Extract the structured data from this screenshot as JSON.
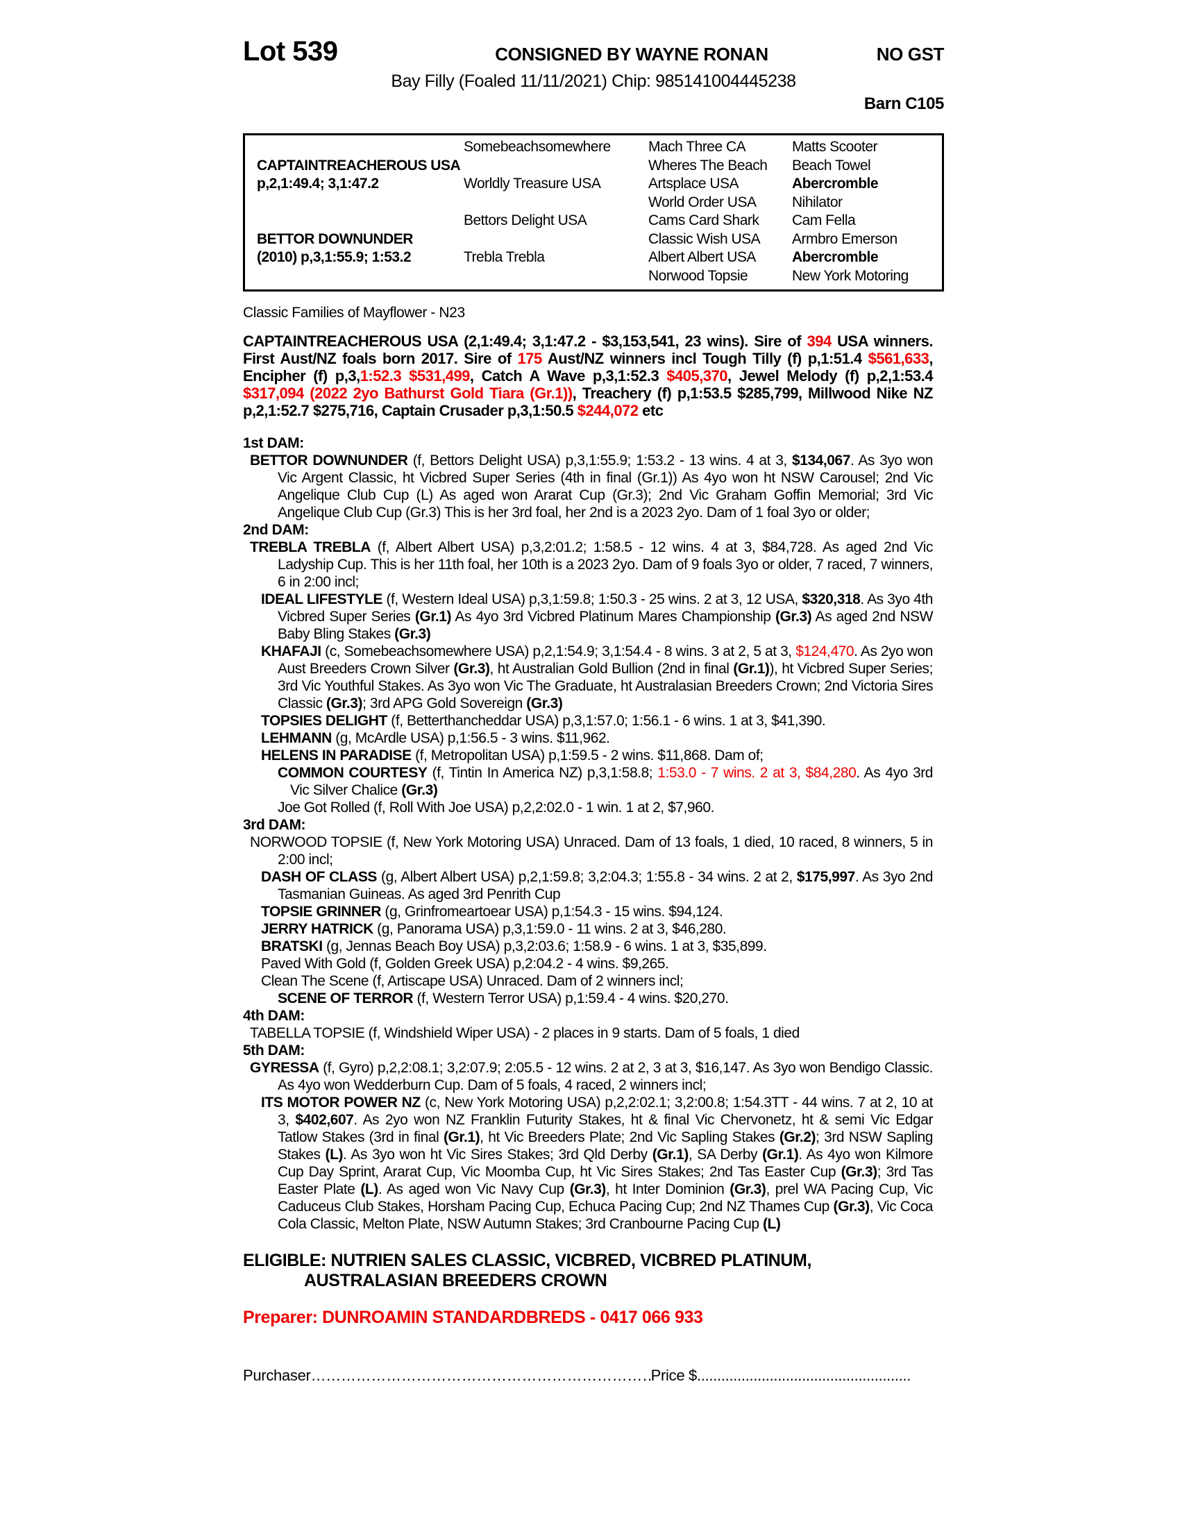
{
  "colors": {
    "red": "#ee0000",
    "text": "#000000"
  },
  "header": {
    "lot": "Lot 539",
    "consigned": "CONSIGNED BY WAYNE RONAN",
    "gst": "NO GST",
    "description": "Bay Filly (Foaled 11/11/2021) Chip: 985141004445238",
    "barn": "Barn C105"
  },
  "pedigree": {
    "rows": [
      [
        "",
        "Somebeachsomewhere",
        "Mach Three CA",
        "Matts Scooter"
      ],
      [
        "CAPTAINTREACHEROUS USA",
        "",
        "Wheres The Beach",
        "Beach Towel"
      ],
      [
        "p,2,1:49.4; 3,1:47.2",
        "Worldly Treasure USA",
        "Artsplace USA",
        "Abercromble"
      ],
      [
        "",
        "",
        "World Order USA",
        "Nihilator"
      ],
      [
        "",
        "Bettors Delight USA",
        "Cams Card Shark",
        "Cam Fella"
      ],
      [
        "BETTOR DOWNUNDER",
        "",
        "Classic Wish USA",
        "Armbro Emerson"
      ],
      [
        "(2010) p,3,1:55.9; 1:53.2",
        "Trebla Trebla",
        "Albert Albert USA",
        "Abercromble"
      ],
      [
        "",
        "",
        "Norwood Topsie",
        "New York Motoring"
      ]
    ]
  },
  "family_note": "Classic Families of Mayflower - N23",
  "sire_paragraph": [
    {
      "t": "CAPTAINTREACHEROUS USA (2,1:49.4; 3,1:47.2 - $3,153,541, 23 wins). Sire of ",
      "s": "b"
    },
    {
      "t": "394",
      "s": "br"
    },
    {
      "t": " USA winners. First Aust/NZ foals born 2017. Sire of ",
      "s": "b"
    },
    {
      "t": "175",
      "s": "br"
    },
    {
      "t": " Aust/NZ winners incl Tough Tilly (f) p,1:51.4 ",
      "s": "b"
    },
    {
      "t": "$561,633",
      "s": "br"
    },
    {
      "t": ", Encipher (f) p,3,",
      "s": "b"
    },
    {
      "t": "1:52.3 $531,499",
      "s": "br"
    },
    {
      "t": ", Catch A Wave p,3,1:52.3 ",
      "s": "b"
    },
    {
      "t": "$405,370",
      "s": "br"
    },
    {
      "t": ", Jewel Melody (f) p,2,1:53.4 ",
      "s": "b"
    },
    {
      "t": "$317,094 (2022 2yo Bathurst Gold Tiara (Gr.1))",
      "s": "br"
    },
    {
      "t": ", Treachery (f) p,1:53.5 $285,799, Millwood Nike NZ p,2,1:52.7 $275,716, Captain Crusader p,3,1:50.5 ",
      "s": "b"
    },
    {
      "t": "$244,072",
      "s": "br"
    },
    {
      "t": " etc",
      "s": "b"
    }
  ],
  "dams": {
    "sections": [
      {
        "header": "1st DAM:",
        "entries": [
          {
            "segments": [
              {
                "t": "BETTOR DOWNUNDER",
                "s": "b"
              },
              {
                "t": " (f, Bettors Delight USA) p,3,1:55.9; 1:53.2 - 13 wins. 4 at 3, "
              },
              {
                "t": "$134,067",
                "s": "b"
              },
              {
                "t": ". As 3yo won Vic Argent Classic, ht Vicbred Super Series (4th in final (Gr.1)) As 4yo won ht NSW Carousel; 2nd Vic Angelique Club Cup (L) As aged won Ararat Cup (Gr.3); 2nd Vic Graham Goffin Memorial; 3rd Vic Angelique Club Cup (Gr.3) This is her 3rd foal, her 2nd is a 2023 2yo. Dam of 1 foal 3yo or older;"
              }
            ]
          }
        ]
      },
      {
        "header": "2nd DAM:",
        "entries": [
          {
            "segments": [
              {
                "t": "TREBLA TREBLA",
                "s": "b"
              },
              {
                "t": " (f, Albert Albert USA) p,3,2:01.2; 1:58.5 - 12 wins. 4 at 3, $84,728. As aged 2nd Vic Ladyship Cup. This is her 11th foal, her 10th is a 2023 2yo. Dam of 9 foals 3yo or older, 7 raced, 7 winners, 6 in 2:00 incl;"
              }
            ]
          },
          {
            "segments": [
              {
                "t": "IDEAL LIFESTYLE",
                "s": "b"
              },
              {
                "t": " (f, Western Ideal USA) p,3,1:59.8; 1:50.3 - 25 wins. 2 at 3, 12 USA, "
              },
              {
                "t": "$320,318",
                "s": "b"
              },
              {
                "t": ". As 3yo 4th Vicbred Super Series "
              },
              {
                "t": "(Gr.1)",
                "s": "b"
              },
              {
                "t": " As 4yo 3rd Vicbred Platinum Mares Championship "
              },
              {
                "t": "(Gr.3)",
                "s": "b"
              },
              {
                "t": " As aged 2nd NSW Baby Bling Stakes "
              },
              {
                "t": "(Gr.3)",
                "s": "b"
              }
            ]
          },
          {
            "segments": [
              {
                "t": "KHAFAJI",
                "s": "b"
              },
              {
                "t": " (c, Somebeachsomewhere USA) p,2,1:54.9; 3,1:54.4 - 8 wins. 3 at 2, 5 at 3, "
              },
              {
                "t": "$124,470",
                "s": "r"
              },
              {
                "t": ". As 2yo won Aust Breeders Crown Silver "
              },
              {
                "t": "(Gr.3)",
                "s": "b"
              },
              {
                "t": ", ht Australian Gold Bullion (2nd in final "
              },
              {
                "t": "(Gr.1)",
                "s": "b"
              },
              {
                "t": "), ht Vicbred Super Series; 3rd Vic Youthful Stakes. As 3yo won Vic The Graduate, ht Australasian Breeders Crown; 2nd Victoria Sires Classic "
              },
              {
                "t": "(Gr.3)",
                "s": "b"
              },
              {
                "t": "; 3rd APG Gold Sovereign "
              },
              {
                "t": "(Gr.3)",
                "s": "b"
              }
            ]
          },
          {
            "segments": [
              {
                "t": "TOPSIES DELIGHT",
                "s": "b"
              },
              {
                "t": " (f, Betterthancheddar USA) p,3,1:57.0; 1:56.1 - 6 wins. 1 at 3, $41,390."
              }
            ]
          },
          {
            "segments": [
              {
                "t": "LEHMANN",
                "s": "b"
              },
              {
                "t": " (g, McArdle USA) p,1:56.5 - 3 wins. $11,962."
              }
            ]
          },
          {
            "segments": [
              {
                "t": "HELENS IN PARADISE",
                "s": "b"
              },
              {
                "t": " (f, Metropolitan USA) p,1:59.5 - 2 wins. $11,868. Dam of;"
              }
            ]
          },
          {
            "segments": [
              {
                "t": "COMMON COURTESY",
                "s": "b"
              },
              {
                "t": " (f, Tintin In America NZ) p,3,1:58.8; "
              },
              {
                "t": "1:53.0 - 7 wins. 2 at 3, $84,280",
                "s": "r"
              },
              {
                "t": ". As 4yo 3rd Vic Silver Chalice "
              },
              {
                "t": "(Gr.3)",
                "s": "b"
              }
            ]
          },
          {
            "segments": [
              {
                "t": "Joe Got Rolled (f, Roll With Joe USA) p,2,2:02.0 - 1 win. 1 at 2, $7,960."
              }
            ]
          }
        ]
      },
      {
        "header": "3rd DAM:",
        "entries": [
          {
            "segments": [
              {
                "t": "NORWOOD TOPSIE (f, New York Motoring USA) Unraced. Dam of 13 foals, 1 died, 10 raced, 8 winners, 5 in 2:00 incl;"
              }
            ]
          },
          {
            "segments": [
              {
                "t": "DASH OF CLASS",
                "s": "b"
              },
              {
                "t": " (g, Albert Albert USA) p,2,1:59.8; 3,2:04.3; 1:55.8 - 34 wins. 2 at 2, "
              },
              {
                "t": "$175,997",
                "s": "b"
              },
              {
                "t": ". As 3yo 2nd Tasmanian Guineas. As aged 3rd Penrith Cup"
              }
            ]
          },
          {
            "segments": [
              {
                "t": "TOPSIE GRINNER",
                "s": "b"
              },
              {
                "t": " (g, Grinfromeartoear USA) p,1:54.3 - 15 wins. $94,124."
              }
            ]
          },
          {
            "segments": [
              {
                "t": "JERRY HATRICK",
                "s": "b"
              },
              {
                "t": " (g, Panorama USA) p,3,1:59.0 - 11 wins. 2 at 3, $46,280."
              }
            ]
          },
          {
            "segments": [
              {
                "t": "BRATSKI",
                "s": "b"
              },
              {
                "t": " (g, Jennas Beach Boy USA) p,3,2:03.6; 1:58.9 - 6 wins. 1 at 3, $35,899."
              }
            ]
          },
          {
            "segments": [
              {
                "t": "Paved With Gold (f, Golden Greek USA) p,2:04.2 - 4 wins. $9,265."
              }
            ]
          },
          {
            "segments": [
              {
                "t": "Clean The Scene (f, Artiscape USA) Unraced. Dam of 2 winners incl;"
              }
            ]
          },
          {
            "segments": [
              {
                "t": "SCENE OF TERROR",
                "s": "b"
              },
              {
                "t": " (f, Western Terror USA) p,1:59.4 - 4 wins. $20,270."
              }
            ]
          }
        ]
      },
      {
        "header": "4th DAM:",
        "entries": [
          {
            "segments": [
              {
                "t": "TABELLA TOPSIE (f, Windshield Wiper USA) - 2 places in 9 starts. Dam of 5 foals, 1 died"
              }
            ]
          }
        ]
      },
      {
        "header": "5th DAM:",
        "entries": [
          {
            "segments": [
              {
                "t": "GYRESSA",
                "s": "b"
              },
              {
                "t": " (f, Gyro) p,2,2:08.1; 3,2:07.9; 2:05.5 - 12 wins. 2 at 2, 3 at 3, $16,147. As 3yo won Bendigo Classic. As 4yo won Wedderburn Cup. Dam of 5 foals, 4 raced, 2 winners incl;"
              }
            ]
          },
          {
            "segments": [
              {
                "t": "ITS MOTOR POWER NZ",
                "s": "b"
              },
              {
                "t": " (c, New York Motoring USA) p,2,2:02.1; 3,2:00.8; 1:54.3TT - 44 wins. 7 at 2, 10 at 3, "
              },
              {
                "t": "$402,607",
                "s": "b"
              },
              {
                "t": ". As 2yo won NZ Franklin Futurity Stakes, ht & final Vic Chervonetz, ht & semi Vic Edgar Tatlow Stakes (3rd in final "
              },
              {
                "t": "(Gr.1)",
                "s": "b"
              },
              {
                "t": ", ht Vic Breeders Plate; 2nd Vic Sapling Stakes "
              },
              {
                "t": "(Gr.2)",
                "s": "b"
              },
              {
                "t": "; 3rd NSW Sapling Stakes "
              },
              {
                "t": "(L)",
                "s": "b"
              },
              {
                "t": ". As 3yo won ht Vic Sires Stakes; 3rd Qld Derby "
              },
              {
                "t": "(Gr.1)",
                "s": "b"
              },
              {
                "t": ", SA Derby "
              },
              {
                "t": "(Gr.1)",
                "s": "b"
              },
              {
                "t": ". As 4yo won Kilmore Cup Day Sprint, Ararat Cup, Vic Moomba Cup, ht Vic Sires Stakes; 2nd Tas Easter Cup "
              },
              {
                "t": "(Gr.3)",
                "s": "b"
              },
              {
                "t": "; 3rd Tas Easter Plate "
              },
              {
                "t": "(L)",
                "s": "b"
              },
              {
                "t": ". As aged won Vic Navy Cup "
              },
              {
                "t": "(Gr.3)",
                "s": "b"
              },
              {
                "t": ", ht Inter Dominion "
              },
              {
                "t": "(Gr.3)",
                "s": "b"
              },
              {
                "t": ", prel WA Pacing Cup, Vic Caduceus Club Stakes, Horsham Pacing Cup, Echuca Pacing Cup; 2nd NZ Thames Cup "
              },
              {
                "t": "(Gr.3)",
                "s": "b"
              },
              {
                "t": ", Vic Coca Cola Classic, Melton Plate, NSW Autumn Stakes; 3rd Cranbourne Pacing Cup "
              },
              {
                "t": "(L)",
                "s": "b"
              }
            ]
          }
        ]
      }
    ]
  },
  "eligible": {
    "line1": "ELIGIBLE: NUTRIEN SALES CLASSIC, VICBRED, VICBRED PLATINUM,",
    "line2": "AUSTRALASIAN BREEDERS CROWN"
  },
  "preparer": "Preparer: DUNROAMIN STANDARDBREDS - 0417 066 933",
  "purchaser": {
    "label": "Purchaser",
    "dots_left": "……………………………………………………………………………………………………..",
    "price_label": "Price $",
    "dots_right": "...................................................................."
  }
}
